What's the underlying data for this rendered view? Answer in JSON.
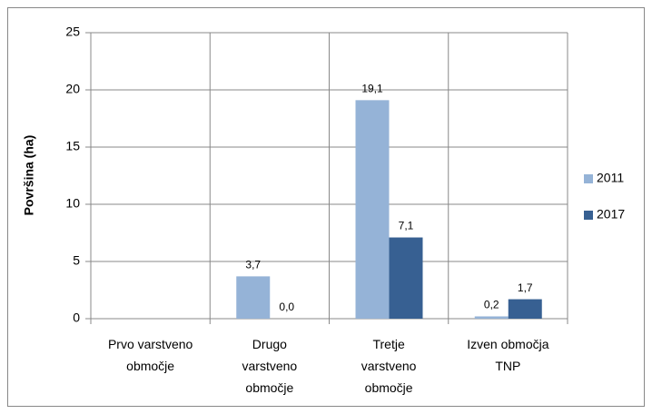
{
  "chart_data": {
    "type": "bar",
    "y_label": "Površina (ha)",
    "categories": [
      "Prvo varstveno\nobmočje",
      "Drugo\nvarstveno\nobmočje",
      "Tretje\nvarstveno\nobmočje",
      "Izven območja\nTNP"
    ],
    "series": [
      {
        "name": "2011",
        "color": "#95b3d7",
        "values": [
          null,
          3.7,
          19.1,
          0.2
        ],
        "value_labels": [
          null,
          "3,7",
          "19,1",
          "0,2"
        ]
      },
      {
        "name": "2017",
        "color": "#376092",
        "values": [
          null,
          0.0,
          7.1,
          1.7
        ],
        "value_labels": [
          null,
          "0,0",
          "7,1",
          "1,7"
        ]
      }
    ],
    "ylim": [
      0,
      25
    ],
    "yticks": [
      0,
      5,
      10,
      15,
      20,
      25
    ],
    "grid": true,
    "legend": "right"
  }
}
